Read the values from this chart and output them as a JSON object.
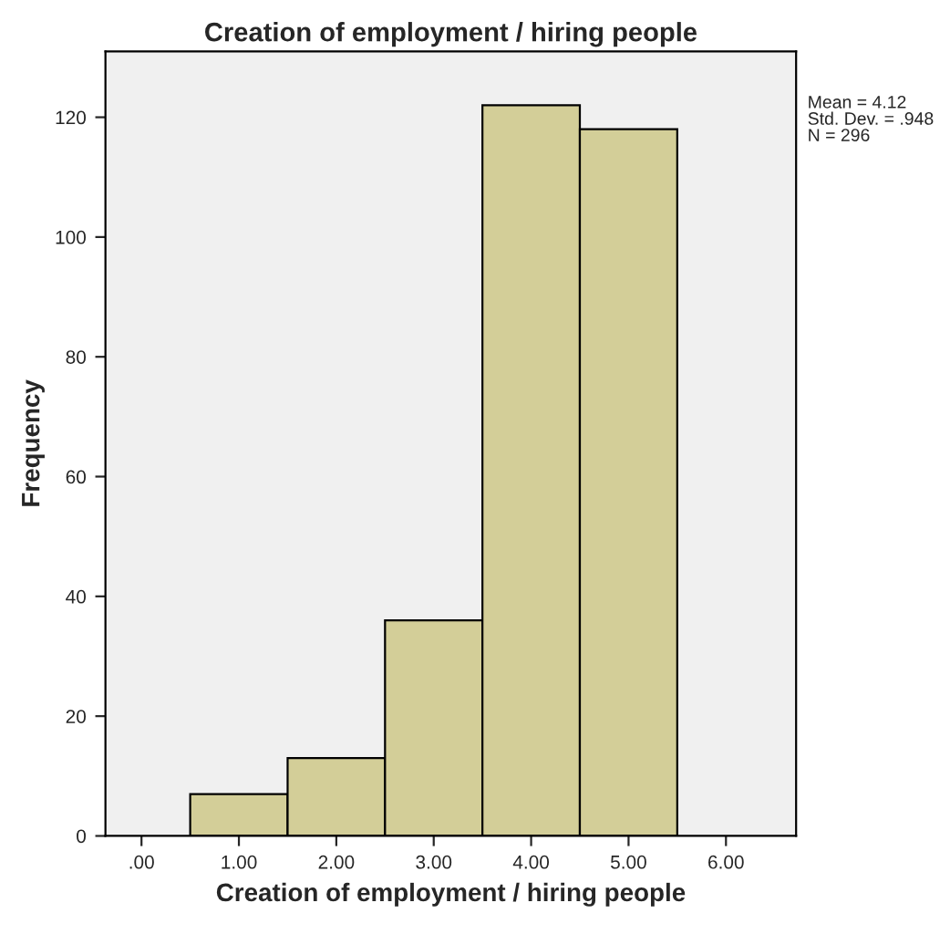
{
  "chart_data": {
    "type": "histogram",
    "title": "Creation of employment / hiring people",
    "xlabel": "Creation of employment / hiring people",
    "ylabel": "Frequency",
    "bins": [
      0.5,
      1.5,
      2.5,
      3.5,
      4.5,
      5.5
    ],
    "values": [
      7,
      13,
      36,
      122,
      118
    ],
    "color": "#d3ce98",
    "xlim": [
      -0.37,
      6.72
    ],
    "ylim": [
      0,
      131
    ],
    "xticks": [
      {
        "value": 0,
        "label": ".00"
      },
      {
        "value": 1,
        "label": "1.00"
      },
      {
        "value": 2,
        "label": "2.00"
      },
      {
        "value": 3,
        "label": "3.00"
      },
      {
        "value": 4,
        "label": "4.00"
      },
      {
        "value": 5,
        "label": "5.00"
      },
      {
        "value": 6,
        "label": "6.00"
      }
    ],
    "yticks": [
      0,
      20,
      40,
      60,
      80,
      100,
      120
    ],
    "annotations": [
      "Mean = 4.12",
      "Std. Dev. = .948",
      "N = 296"
    ],
    "grid": false
  }
}
